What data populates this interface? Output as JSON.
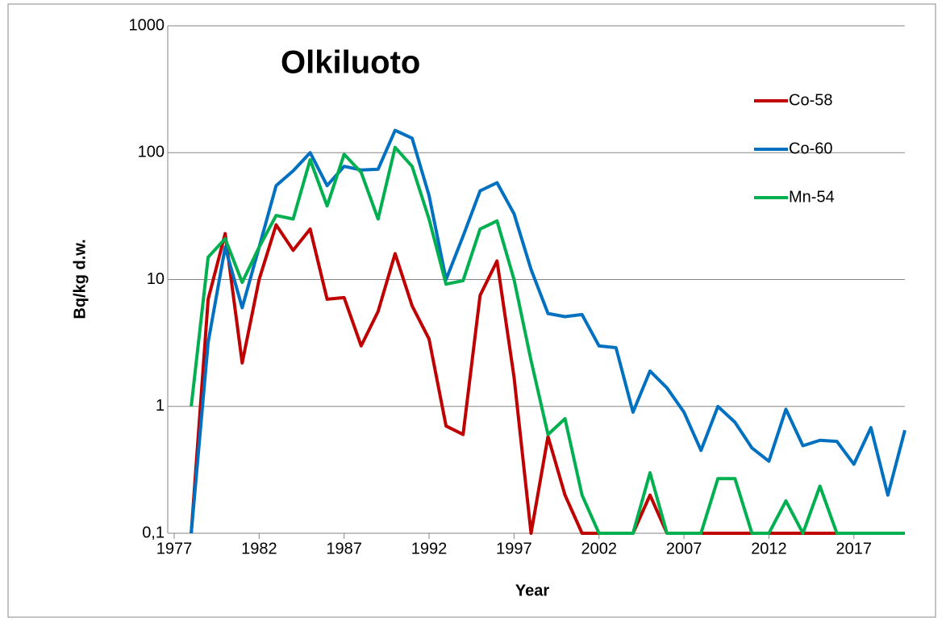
{
  "chart_data": {
    "type": "line",
    "title": "Olkiluoto",
    "xlabel": "Year",
    "ylabel": "Bq/kg d.w.",
    "log_y": true,
    "grid": true,
    "legend": "upper-right",
    "x": [
      1978,
      1979,
      1980,
      1981,
      1982,
      1983,
      1984,
      1985,
      1986,
      1987,
      1988,
      1989,
      1990,
      1991,
      1992,
      1993,
      1994,
      1995,
      1996,
      1997,
      1998,
      1999,
      2000,
      2001,
      2002,
      2003,
      2004,
      2005,
      2006,
      2007,
      2008,
      2009,
      2010,
      2011,
      2012,
      2013,
      2014,
      2015,
      2016,
      2017,
      2018,
      2019,
      2020
    ],
    "xlim": [
      1977,
      2020
    ],
    "xticks": [
      1977,
      1982,
      1987,
      1992,
      1997,
      2002,
      2007,
      2012,
      2017
    ],
    "ylim": [
      0.1,
      1000
    ],
    "yticks": [
      {
        "value": 0.1,
        "label": "0,1"
      },
      1,
      10,
      100,
      1000
    ],
    "series": [
      {
        "name": "Co-58",
        "color": "#c00000",
        "values": [
          0.1,
          7,
          23,
          2.2,
          10,
          27,
          17,
          25,
          7,
          7.2,
          3,
          5.6,
          16,
          6.2,
          3.4,
          0.7,
          0.6,
          7.5,
          14,
          1.7,
          0.1,
          0.58,
          0.2,
          0.1,
          0.1,
          0.1,
          0.1,
          0.2,
          0.1,
          0.1,
          0.1,
          0.1,
          0.1,
          0.1,
          0.1,
          0.1,
          0.1,
          0.1,
          0.1,
          0.1,
          0.1,
          0.1,
          0.1
        ]
      },
      {
        "name": "Co-60",
        "color": "#0070c0",
        "values": [
          0.1,
          3.2,
          18,
          6,
          18,
          55,
          72,
          100,
          55,
          78,
          73,
          74,
          150,
          130,
          46,
          10,
          22,
          50,
          58,
          33,
          12,
          5.4,
          5.1,
          5.3,
          3.0,
          2.9,
          0.9,
          1.9,
          1.4,
          0.9,
          0.45,
          1.0,
          0.75,
          0.47,
          0.37,
          0.95,
          0.49,
          0.54,
          0.53,
          0.35,
          0.68,
          0.2,
          0.65
        ]
      },
      {
        "name": "Mn-54",
        "color": "#00b050",
        "values": [
          1,
          15,
          21,
          9.5,
          18,
          32,
          30,
          88,
          38,
          97,
          70,
          30,
          110,
          78,
          30,
          9.2,
          9.8,
          25,
          29,
          10,
          2.3,
          0.6,
          0.8,
          0.2,
          0.1,
          0.1,
          0.1,
          0.3,
          0.1,
          0.1,
          0.1,
          0.27,
          0.27,
          0.1,
          0.1,
          0.18,
          0.1,
          0.235,
          0.1,
          0.1,
          0.1,
          0.1,
          0.1
        ]
      }
    ]
  }
}
